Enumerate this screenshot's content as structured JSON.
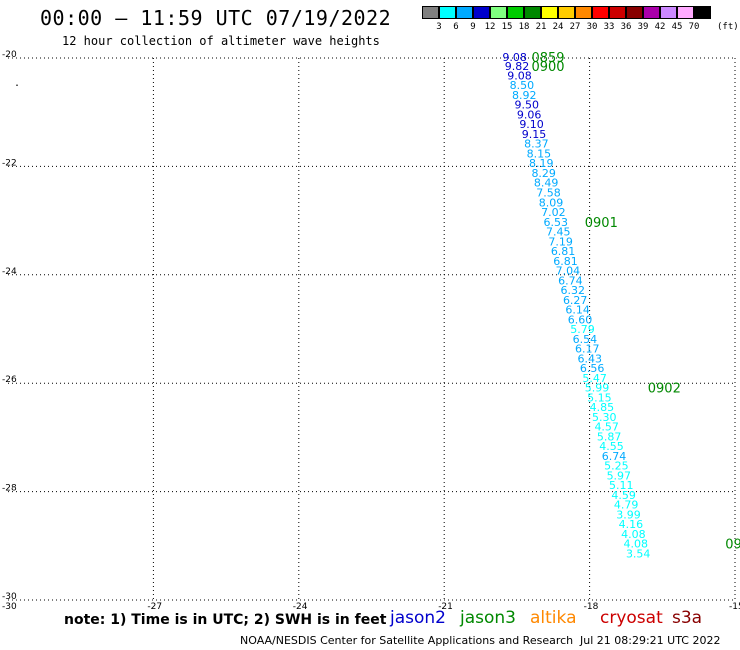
{
  "header": {
    "title": "00:00 – 11:59 UTC 07/19/2022",
    "subtitle": "12 hour collection of altimeter wave heights"
  },
  "legend": {
    "unit": "(ft)",
    "colors": [
      "#808080",
      "#00ffff",
      "#00aaff",
      "#0000cc",
      "#80ff80",
      "#00cc00",
      "#008800",
      "#ffff00",
      "#ffcc00",
      "#ff8800",
      "#ff0000",
      "#cc0000",
      "#880000",
      "#aa00aa",
      "#cc88ff",
      "#ffaaff",
      "#000000"
    ],
    "labels": [
      "3",
      "6",
      "9",
      "12",
      "15",
      "18",
      "21",
      "24",
      "27",
      "30",
      "33",
      "36",
      "39",
      "42",
      "45",
      "70"
    ]
  },
  "map": {
    "lat_ticks": [
      "-20",
      "-22",
      "-24",
      "-26",
      "-28",
      "-30"
    ],
    "lon_ticks": [
      "-27",
      "-24",
      "-21",
      "-18",
      "-15"
    ],
    "lat_range": [
      -30,
      -20
    ],
    "lon_range": [
      -30,
      -15
    ],
    "dot": "."
  },
  "track": {
    "points": [
      {
        "lon": -19.8,
        "lat": -20.0,
        "swh": "9.08",
        "color": "#0000cc"
      },
      {
        "lon": -19.75,
        "lat": -20.17,
        "swh": "9.82",
        "color": "#0000cc"
      },
      {
        "lon": -19.7,
        "lat": -20.34,
        "swh": "9.08",
        "color": "#0000cc"
      },
      {
        "lon": -19.65,
        "lat": -20.52,
        "swh": "8.50",
        "color": "#00aaff"
      },
      {
        "lon": -19.6,
        "lat": -20.7,
        "swh": "8.92",
        "color": "#00aaff"
      },
      {
        "lon": -19.55,
        "lat": -20.88,
        "swh": "9.50",
        "color": "#0000cc"
      },
      {
        "lon": -19.5,
        "lat": -21.06,
        "swh": "9.06",
        "color": "#0000cc"
      },
      {
        "lon": -19.45,
        "lat": -21.24,
        "swh": "9.10",
        "color": "#0000cc"
      },
      {
        "lon": -19.4,
        "lat": -21.42,
        "swh": "9.15",
        "color": "#0000cc"
      },
      {
        "lon": -19.35,
        "lat": -21.6,
        "swh": "8.37",
        "color": "#00aaff"
      },
      {
        "lon": -19.3,
        "lat": -21.78,
        "swh": "8.15",
        "color": "#00aaff"
      },
      {
        "lon": -19.25,
        "lat": -21.96,
        "swh": "8.19",
        "color": "#00aaff"
      },
      {
        "lon": -19.2,
        "lat": -22.14,
        "swh": "8.29",
        "color": "#00aaff"
      },
      {
        "lon": -19.15,
        "lat": -22.32,
        "swh": "8.49",
        "color": "#00aaff"
      },
      {
        "lon": -19.1,
        "lat": -22.5,
        "swh": "7.58",
        "color": "#00aaff"
      },
      {
        "lon": -19.05,
        "lat": -22.68,
        "swh": "8.09",
        "color": "#00aaff"
      },
      {
        "lon": -19.0,
        "lat": -22.86,
        "swh": "7.02",
        "color": "#00aaff"
      },
      {
        "lon": -18.95,
        "lat": -23.04,
        "swh": "6.53",
        "color": "#00aaff"
      },
      {
        "lon": -18.9,
        "lat": -23.22,
        "swh": "7.45",
        "color": "#00aaff"
      },
      {
        "lon": -18.85,
        "lat": -23.4,
        "swh": "7.19",
        "color": "#00aaff"
      },
      {
        "lon": -18.8,
        "lat": -23.58,
        "swh": "6.81",
        "color": "#00aaff"
      },
      {
        "lon": -18.75,
        "lat": -23.76,
        "swh": "6.81",
        "color": "#00aaff"
      },
      {
        "lon": -18.7,
        "lat": -23.94,
        "swh": "7.04",
        "color": "#00aaff"
      },
      {
        "lon": -18.65,
        "lat": -24.12,
        "swh": "6.74",
        "color": "#00aaff"
      },
      {
        "lon": -18.6,
        "lat": -24.3,
        "swh": "6.32",
        "color": "#00aaff"
      },
      {
        "lon": -18.55,
        "lat": -24.48,
        "swh": "6.27",
        "color": "#00aaff"
      },
      {
        "lon": -18.5,
        "lat": -24.66,
        "swh": "6.14",
        "color": "#00aaff"
      },
      {
        "lon": -18.45,
        "lat": -24.84,
        "swh": "6.60",
        "color": "#00aaff"
      },
      {
        "lon": -18.4,
        "lat": -25.02,
        "swh": "5.79",
        "color": "#00ffff"
      },
      {
        "lon": -18.35,
        "lat": -25.2,
        "swh": "6.54",
        "color": "#00aaff"
      },
      {
        "lon": -18.3,
        "lat": -25.38,
        "swh": "6.17",
        "color": "#00aaff"
      },
      {
        "lon": -18.25,
        "lat": -25.56,
        "swh": "6.43",
        "color": "#00aaff"
      },
      {
        "lon": -18.2,
        "lat": -25.74,
        "swh": "6.56",
        "color": "#00aaff"
      },
      {
        "lon": -18.15,
        "lat": -25.92,
        "swh": "5.47",
        "color": "#00ffff"
      },
      {
        "lon": -18.1,
        "lat": -26.1,
        "swh": "5.99",
        "color": "#00ffff"
      },
      {
        "lon": -18.05,
        "lat": -26.28,
        "swh": "5.15",
        "color": "#00ffff"
      },
      {
        "lon": -18.0,
        "lat": -26.46,
        "swh": "4.85",
        "color": "#00ffff"
      },
      {
        "lon": -17.95,
        "lat": -26.64,
        "swh": "5.30",
        "color": "#00ffff"
      },
      {
        "lon": -17.9,
        "lat": -26.82,
        "swh": "4.57",
        "color": "#00ffff"
      },
      {
        "lon": -17.85,
        "lat": -27.0,
        "swh": "5.87",
        "color": "#00ffff"
      },
      {
        "lon": -17.8,
        "lat": -27.18,
        "swh": "4.55",
        "color": "#00ffff"
      },
      {
        "lon": -17.75,
        "lat": -27.36,
        "swh": "6.74",
        "color": "#00aaff"
      },
      {
        "lon": -17.7,
        "lat": -27.54,
        "swh": "5.25",
        "color": "#00ffff"
      },
      {
        "lon": -17.65,
        "lat": -27.72,
        "swh": "5.97",
        "color": "#00ffff"
      },
      {
        "lon": -17.6,
        "lat": -27.9,
        "swh": "5.11",
        "color": "#00ffff"
      },
      {
        "lon": -17.55,
        "lat": -28.08,
        "swh": "4.59",
        "color": "#00ffff"
      },
      {
        "lon": -17.5,
        "lat": -28.26,
        "swh": "4.79",
        "color": "#00ffff"
      },
      {
        "lon": -17.45,
        "lat": -28.44,
        "swh": "3.99",
        "color": "#00ffff"
      },
      {
        "lon": -17.4,
        "lat": -28.62,
        "swh": "4.16",
        "color": "#00ffff"
      },
      {
        "lon": -17.35,
        "lat": -28.8,
        "swh": "4.08",
        "color": "#00ffff"
      },
      {
        "lon": -17.3,
        "lat": -28.98,
        "swh": "4.08",
        "color": "#00ffff"
      },
      {
        "lon": -17.25,
        "lat": -29.16,
        "swh": "3.54",
        "color": "#00ffff"
      }
    ],
    "time_labels": [
      {
        "lon": -19.2,
        "lat": -20.0,
        "text": "0859",
        "color": "#008800"
      },
      {
        "lon": -19.2,
        "lat": -20.17,
        "text": "0900",
        "color": "#008800"
      },
      {
        "lon": -18.1,
        "lat": -23.04,
        "text": "0901",
        "color": "#008800"
      },
      {
        "lon": -16.8,
        "lat": -26.1,
        "text": "0902",
        "color": "#008800"
      },
      {
        "lon": -15.2,
        "lat": -28.98,
        "text": "09",
        "color": "#008800"
      }
    ]
  },
  "footer": {
    "note": "note: 1) Time is in UTC; 2) SWH is in feet",
    "satellites": [
      {
        "name": "jason2",
        "color": "#0000cc"
      },
      {
        "name": "jason3",
        "color": "#008800"
      },
      {
        "name": "altika",
        "color": "#ff8800"
      },
      {
        "name": "cryosat",
        "color": "#cc0000"
      },
      {
        "name": "s3a",
        "color": "#880000"
      }
    ],
    "credit": "NOAA/NESDIS Center for Satellite Applications and Research",
    "timestamp": "Jul 21 08:29:21 UTC 2022"
  }
}
